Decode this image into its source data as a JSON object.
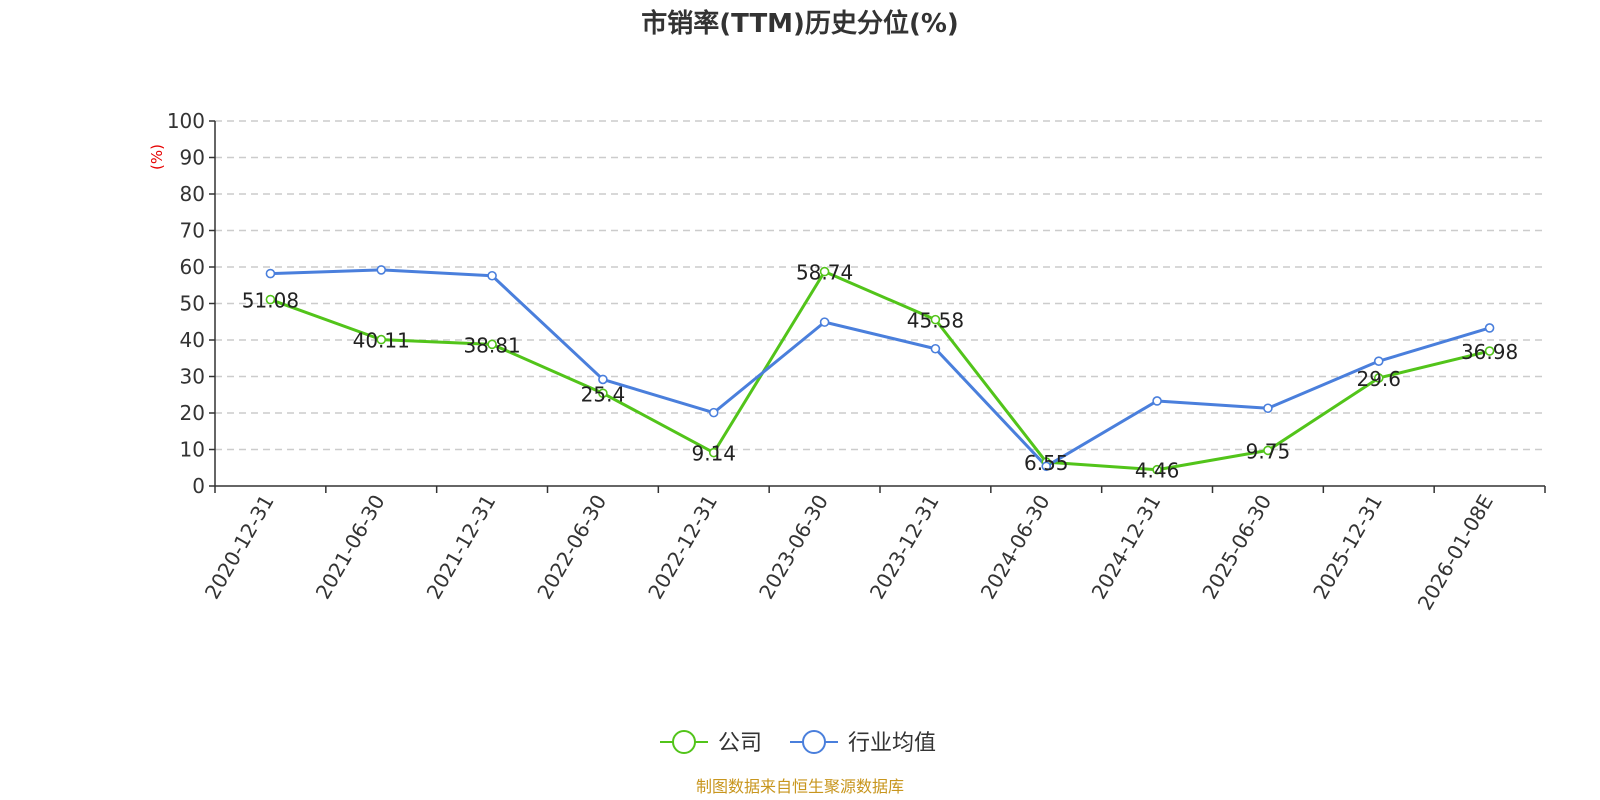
{
  "chart_data": {
    "type": "line",
    "title": "市销率(TTM)历史分位(%)",
    "ylabel": "(%)",
    "ylim": [
      0,
      100
    ],
    "yticks": [
      0,
      10,
      20,
      30,
      40,
      50,
      60,
      70,
      80,
      90,
      100
    ],
    "grid": true,
    "legend_position": "bottom-center",
    "categories": [
      "2020-12-31",
      "2021-06-30",
      "2021-12-31",
      "2022-06-30",
      "2022-12-31",
      "2023-06-30",
      "2023-12-31",
      "2024-06-30",
      "2024-12-31",
      "2025-06-30",
      "2025-12-31",
      "2026-01-08E"
    ],
    "series": [
      {
        "name": "公司",
        "color": "#52c41a",
        "values": [
          51.08,
          40.11,
          38.81,
          25.4,
          9.14,
          58.74,
          45.58,
          6.55,
          4.46,
          9.75,
          29.6,
          36.98
        ],
        "labels": [
          "51.08",
          "40.11",
          "38.81",
          "25.4",
          "9.14",
          "58.74",
          "45.58",
          "6.55",
          "4.46",
          "9.75",
          "29.6",
          "36.98"
        ]
      },
      {
        "name": "行业均值",
        "color": "#4a7fdc",
        "values": [
          58.2,
          59.2,
          57.6,
          29.2,
          20.1,
          44.9,
          37.6,
          5.4,
          23.3,
          21.3,
          34.2,
          43.3
        ]
      }
    ]
  },
  "source": "制图数据来自恒生聚源数据库",
  "colors": {
    "source": "#c8961e",
    "unit": "#e60000",
    "axis": "#333333",
    "grid": "#cccccc"
  }
}
